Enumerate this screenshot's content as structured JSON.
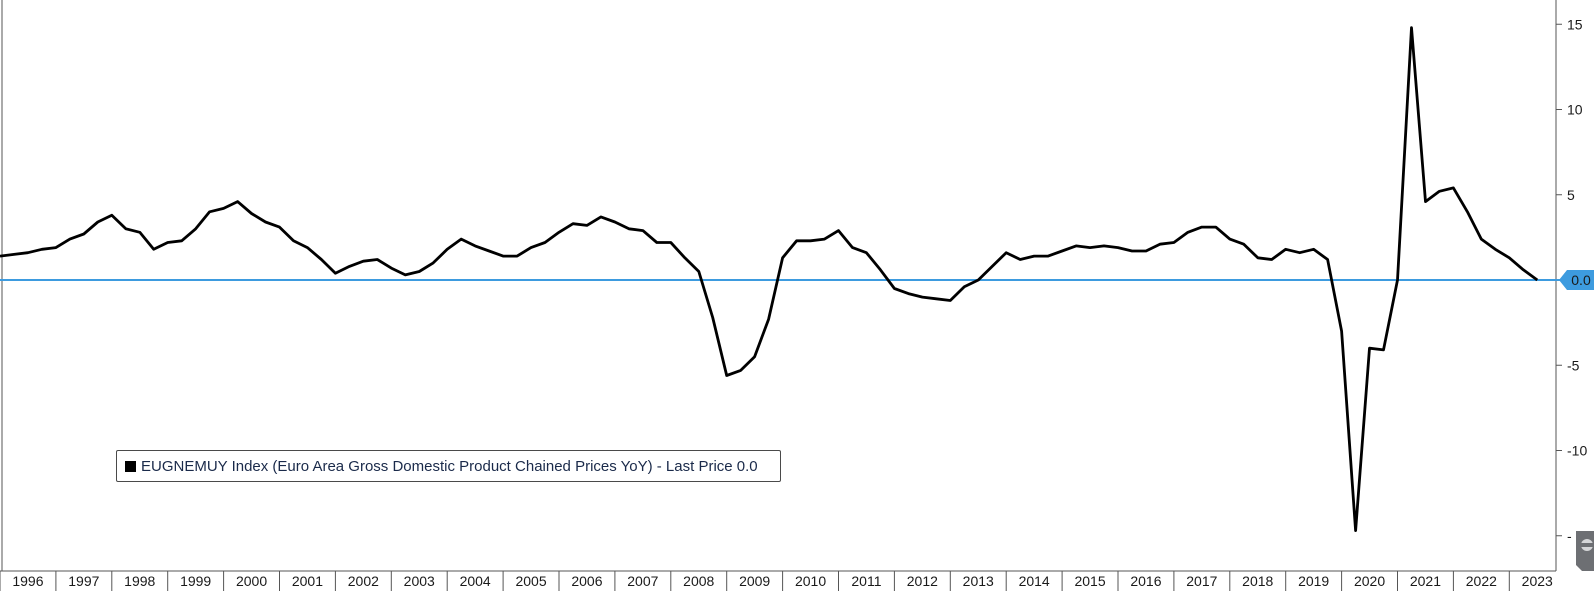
{
  "chart_data": {
    "type": "line",
    "legend": {
      "text": "EUGNEMUY Index (Euro Area Gross Domestic Product Chained  Prices YoY) - Last Price 0.0",
      "color": "#000000"
    },
    "last_value_label": "0.0",
    "ylim": [
      -16,
      16
    ],
    "y_ticks": [
      {
        "value": 15,
        "label": "15"
      },
      {
        "value": 10,
        "label": "10"
      },
      {
        "value": 5,
        "label": "5"
      },
      {
        "value": -5,
        "label": "-5"
      },
      {
        "value": -10,
        "label": "-10"
      },
      {
        "value": -15,
        "label": "-"
      }
    ],
    "x_categories": [
      "1996",
      "1997",
      "1998",
      "1999",
      "2000",
      "2001",
      "2002",
      "2003",
      "2004",
      "2005",
      "2006",
      "2007",
      "2008",
      "2009",
      "2010",
      "2011",
      "2012",
      "2013",
      "2014",
      "2015",
      "2016",
      "2017",
      "2018",
      "2019",
      "2020",
      "2021",
      "2022",
      "2023"
    ],
    "reference_line": {
      "value": 0,
      "color": "#3d9bdf"
    },
    "series": [
      {
        "color": "#000000",
        "x": [
          1996.0,
          1996.25,
          1996.5,
          1996.75,
          1997.0,
          1997.25,
          1997.5,
          1997.75,
          1998.0,
          1998.25,
          1998.5,
          1998.75,
          1999.0,
          1999.25,
          1999.5,
          1999.75,
          2000.0,
          2000.25,
          2000.5,
          2000.75,
          2001.0,
          2001.25,
          2001.5,
          2001.75,
          2002.0,
          2002.25,
          2002.5,
          2002.75,
          2003.0,
          2003.25,
          2003.5,
          2003.75,
          2004.0,
          2004.25,
          2004.5,
          2004.75,
          2005.0,
          2005.25,
          2005.5,
          2005.75,
          2006.0,
          2006.25,
          2006.5,
          2006.75,
          2007.0,
          2007.25,
          2007.5,
          2007.75,
          2008.0,
          2008.25,
          2008.5,
          2008.75,
          2009.0,
          2009.25,
          2009.5,
          2009.75,
          2010.0,
          2010.25,
          2010.5,
          2010.75,
          2011.0,
          2011.25,
          2011.5,
          2011.75,
          2012.0,
          2012.25,
          2012.5,
          2012.75,
          2013.0,
          2013.25,
          2013.5,
          2013.75,
          2014.0,
          2014.25,
          2014.5,
          2014.75,
          2015.0,
          2015.25,
          2015.5,
          2015.75,
          2016.0,
          2016.25,
          2016.5,
          2016.75,
          2017.0,
          2017.25,
          2017.5,
          2017.75,
          2018.0,
          2018.25,
          2018.5,
          2018.75,
          2019.0,
          2019.25,
          2019.5,
          2019.75,
          2020.0,
          2020.25,
          2020.5,
          2020.75,
          2021.0,
          2021.25,
          2021.5,
          2021.75,
          2022.0,
          2022.25,
          2022.5,
          2022.75,
          2023.0,
          2023.25,
          2023.5
        ],
        "y": [
          1.4,
          1.5,
          1.6,
          1.8,
          1.9,
          2.4,
          2.7,
          3.4,
          3.8,
          3.0,
          2.8,
          1.8,
          2.2,
          2.3,
          3.0,
          4.0,
          4.2,
          4.6,
          3.9,
          3.4,
          3.1,
          2.3,
          1.9,
          1.2,
          0.4,
          0.8,
          1.1,
          1.2,
          0.7,
          0.3,
          0.5,
          1.0,
          1.8,
          2.4,
          2.0,
          1.7,
          1.4,
          1.4,
          1.9,
          2.2,
          2.8,
          3.3,
          3.2,
          3.7,
          3.4,
          3.0,
          2.9,
          2.2,
          2.2,
          1.3,
          0.5,
          -2.2,
          -5.6,
          -5.3,
          -4.5,
          -2.3,
          1.3,
          2.3,
          2.3,
          2.4,
          2.9,
          1.9,
          1.6,
          0.6,
          -0.5,
          -0.8,
          -1.0,
          -1.1,
          -1.2,
          -0.4,
          0.0,
          0.8,
          1.6,
          1.2,
          1.4,
          1.4,
          1.7,
          2.0,
          1.9,
          2.0,
          1.9,
          1.7,
          1.7,
          2.1,
          2.2,
          2.8,
          3.1,
          3.1,
          2.4,
          2.1,
          1.3,
          1.2,
          1.8,
          1.6,
          1.8,
          1.2,
          -3.0,
          -14.7,
          -4.0,
          -4.1,
          0.0,
          14.8,
          4.6,
          5.2,
          5.4,
          4.0,
          2.4,
          1.8,
          1.3,
          0.6,
          0.0
        ]
      }
    ]
  }
}
